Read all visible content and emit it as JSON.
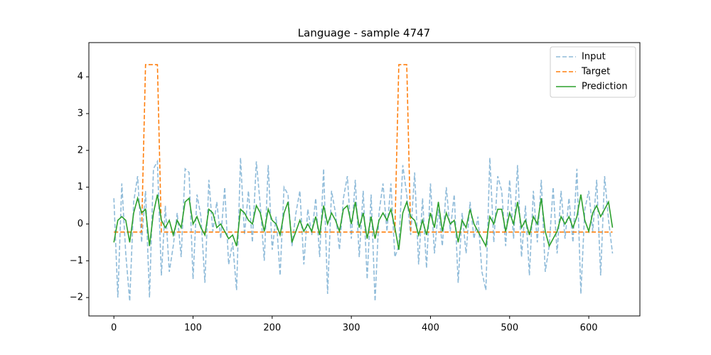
{
  "chart_data": {
    "type": "line",
    "title": "Language - sample 4747",
    "x": [
      0,
      5,
      10,
      15,
      20,
      25,
      30,
      35,
      40,
      45,
      50,
      55,
      60,
      65,
      70,
      75,
      80,
      85,
      90,
      95,
      100,
      105,
      110,
      115,
      120,
      125,
      130,
      135,
      140,
      145,
      150,
      155,
      160,
      165,
      170,
      175,
      180,
      185,
      190,
      195,
      200,
      205,
      210,
      215,
      220,
      225,
      230,
      235,
      240,
      245,
      250,
      255,
      260,
      265,
      270,
      275,
      280,
      285,
      290,
      295,
      300,
      305,
      310,
      315,
      320,
      325,
      330,
      335,
      340,
      345,
      350,
      355,
      360,
      365,
      370,
      375,
      380,
      385,
      390,
      395,
      400,
      405,
      410,
      415,
      420,
      425,
      430,
      435,
      440,
      445,
      450,
      455,
      460,
      465,
      470,
      475,
      480,
      485,
      490,
      495,
      500,
      505,
      510,
      515,
      520,
      525,
      530,
      535,
      540,
      545,
      550,
      555,
      560,
      565,
      570,
      575,
      580,
      585,
      590,
      595,
      600,
      605,
      610,
      615,
      620,
      625,
      630
    ],
    "series": [
      {
        "name": "Input",
        "color": "#8fbbd9",
        "linestyle": "dashed",
        "values": [
          0.7,
          -2.0,
          1.1,
          -0.8,
          -2.1,
          0.6,
          1.3,
          -0.5,
          0.9,
          -2.0,
          1.5,
          1.7,
          -1.4,
          0.5,
          -1.3,
          -0.6,
          0.3,
          -0.9,
          1.5,
          1.4,
          -1.5,
          0.8,
          0.2,
          -1.6,
          1.2,
          -0.2,
          0.6,
          -0.4,
          1.0,
          -1.1,
          -0.5,
          -1.8,
          1.8,
          -0.3,
          0.9,
          -0.5,
          1.7,
          0.5,
          -1.0,
          1.6,
          -0.7,
          0.2,
          -1.4,
          1.0,
          0.8,
          -0.6,
          0.3,
          0.9,
          -1.1,
          0.4,
          -0.3,
          0.7,
          -0.9,
          1.5,
          -1.9,
          0.9,
          0.3,
          -0.7,
          0.7,
          1.3,
          -0.4,
          1.2,
          -0.9,
          0.9,
          -1.5,
          0.8,
          -2.1,
          0.3,
          1.1,
          -0.2,
          1.1,
          -0.9,
          -0.6,
          1.6,
          0.8,
          -0.3,
          1.4,
          -1.1,
          0.7,
          -1.2,
          1.1,
          -0.8,
          0.4,
          -0.6,
          1.0,
          -0.2,
          0.8,
          -1.6,
          0.3,
          -0.8,
          0.6,
          -0.4,
          0.2,
          -1.3,
          -1.8,
          1.8,
          -0.5,
          1.3,
          0.9,
          -0.6,
          1.2,
          -0.4,
          1.6,
          -0.9,
          0.5,
          -1.4,
          0.9,
          -0.5,
          1.2,
          -1.3,
          -0.6,
          1.0,
          -0.8,
          0.9,
          -0.4,
          0.7,
          -0.5,
          1.5,
          -1.9,
          0.4,
          0.9,
          -0.2,
          1.2,
          -1.4,
          1.3,
          0.1,
          -0.8
        ]
      },
      {
        "name": "Target",
        "color": "#ff7f0e",
        "linestyle": "dashed",
        "values": [
          -0.22,
          -0.22,
          -0.22,
          -0.22,
          -0.22,
          -0.22,
          -0.22,
          -0.22,
          4.33,
          4.33,
          4.33,
          4.33,
          -0.22,
          -0.22,
          -0.22,
          -0.22,
          -0.22,
          -0.22,
          -0.22,
          -0.22,
          -0.22,
          -0.22,
          -0.22,
          -0.22,
          -0.22,
          -0.22,
          -0.22,
          -0.22,
          -0.22,
          -0.22,
          -0.22,
          -0.22,
          -0.22,
          -0.22,
          -0.22,
          -0.22,
          -0.22,
          -0.22,
          -0.22,
          -0.22,
          -0.22,
          -0.22,
          -0.22,
          -0.22,
          -0.22,
          -0.22,
          -0.22,
          -0.22,
          -0.22,
          -0.22,
          -0.22,
          -0.22,
          -0.22,
          -0.22,
          -0.22,
          -0.22,
          -0.22,
          -0.22,
          -0.22,
          -0.22,
          -0.22,
          -0.22,
          -0.22,
          -0.22,
          -0.22,
          -0.22,
          -0.22,
          -0.22,
          -0.22,
          -0.22,
          -0.22,
          -0.22,
          4.33,
          4.33,
          4.33,
          -0.22,
          -0.22,
          -0.22,
          -0.22,
          -0.22,
          -0.22,
          -0.22,
          -0.22,
          -0.22,
          -0.22,
          -0.22,
          -0.22,
          -0.22,
          -0.22,
          -0.22,
          -0.22,
          -0.22,
          -0.22,
          -0.22,
          -0.22,
          -0.22,
          -0.22,
          -0.22,
          -0.22,
          -0.22,
          -0.22,
          -0.22,
          -0.22,
          -0.22,
          -0.22,
          -0.22,
          -0.22,
          -0.22,
          -0.22,
          -0.22,
          -0.22,
          -0.22,
          -0.22,
          -0.22,
          -0.22,
          -0.22,
          -0.22,
          -0.22,
          -0.22,
          -0.22,
          -0.22,
          -0.22,
          -0.22,
          -0.22,
          -0.22,
          -0.22,
          -0.22
        ]
      },
      {
        "name": "Prediction",
        "color": "#2ca02c",
        "linestyle": "solid",
        "values": [
          -0.5,
          0.1,
          0.2,
          0.1,
          -0.5,
          0.3,
          0.7,
          0.3,
          0.4,
          -0.6,
          0.3,
          0.8,
          0.1,
          -0.1,
          0.1,
          -0.3,
          0.1,
          -0.1,
          0.6,
          0.7,
          0.0,
          0.2,
          -0.1,
          -0.3,
          0.4,
          0.3,
          -0.1,
          0.0,
          -0.2,
          -0.4,
          -0.3,
          -0.6,
          0.4,
          0.3,
          0.1,
          0.0,
          0.5,
          0.3,
          -0.2,
          0.4,
          0.1,
          0.0,
          -0.3,
          0.3,
          0.6,
          -0.5,
          -0.2,
          0.1,
          -0.2,
          0.0,
          -0.2,
          0.2,
          -0.3,
          0.5,
          0.0,
          0.3,
          0.1,
          -0.2,
          0.4,
          0.5,
          0.0,
          0.6,
          -0.1,
          0.3,
          -0.4,
          0.2,
          -0.4,
          0.1,
          0.3,
          0.1,
          0.4,
          -0.1,
          -0.7,
          0.3,
          0.6,
          0.2,
          0.1,
          -0.3,
          0.1,
          -0.3,
          0.3,
          -0.1,
          0.6,
          -0.2,
          0.3,
          0.0,
          0.1,
          -0.5,
          0.1,
          -0.1,
          0.4,
          0.0,
          -0.2,
          -0.4,
          -0.6,
          0.2,
          0.0,
          0.4,
          0.4,
          -0.2,
          0.3,
          0.0,
          0.6,
          -0.1,
          0.1,
          -0.3,
          0.2,
          0.0,
          0.7,
          -0.2,
          -0.6,
          -0.4,
          -0.2,
          0.2,
          0.0,
          0.2,
          -0.1,
          0.2,
          0.8,
          0.1,
          -0.2,
          0.3,
          0.5,
          0.2,
          0.4,
          0.6,
          -0.1
        ]
      }
    ],
    "xlim": [
      -31.6,
      664.6
    ],
    "ylim": [
      -2.5,
      4.93
    ],
    "xticks": [
      0,
      100,
      200,
      300,
      400,
      500,
      600
    ],
    "yticks": [
      {
        "value": -2,
        "label": "−2"
      },
      {
        "value": -1,
        "label": "−1"
      },
      0,
      1,
      2,
      3,
      4
    ],
    "legend": "upper right"
  }
}
